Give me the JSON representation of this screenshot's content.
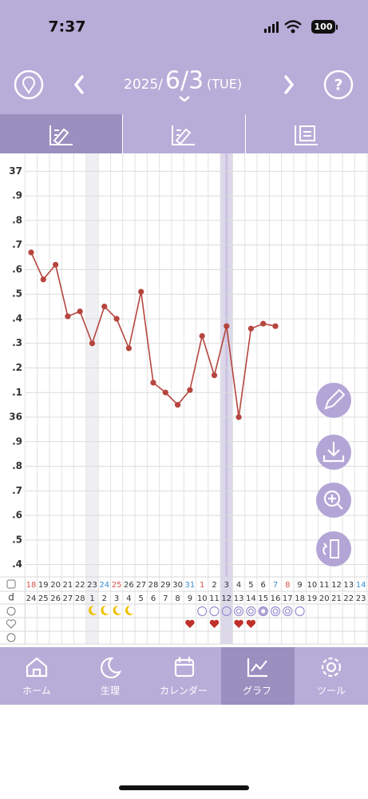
{
  "status_bar": {
    "time": "7:37",
    "battery": "100"
  },
  "header": {
    "year": "2025/",
    "date": "6/3",
    "weekday": "(TUE)"
  },
  "chart_data": {
    "type": "line",
    "categories": [
      "18",
      "19",
      "20",
      "21",
      "22",
      "23",
      "24",
      "25",
      "26",
      "27",
      "28",
      "29",
      "30",
      "31",
      "1",
      "2",
      "3",
      "4",
      "5",
      "6",
      "7",
      "8",
      "9",
      "10",
      "11",
      "12",
      "13",
      "14"
    ],
    "category_colors": [
      "#d9534f",
      "#333",
      "#333",
      "#333",
      "#333",
      "#333",
      "#3a8fd0",
      "#d9534f",
      "#333",
      "#333",
      "#333",
      "#333",
      "#333",
      "#3a8fd0",
      "#d9534f",
      "#333",
      "#333",
      "#333",
      "#333",
      "#333",
      "#3a8fd0",
      "#d9534f",
      "#333",
      "#333",
      "#333",
      "#333",
      "#333",
      "#3a8fd0"
    ],
    "cycle_label": "d",
    "cycle_days": [
      "24",
      "25",
      "26",
      "27",
      "28",
      "1",
      "2",
      "3",
      "4",
      "5",
      "6",
      "7",
      "8",
      "9",
      "10",
      "11",
      "12",
      "13",
      "14",
      "15",
      "16",
      "17",
      "18",
      "19",
      "20",
      "21",
      "22",
      "23"
    ],
    "values": [
      36.67,
      36.56,
      36.62,
      36.41,
      36.43,
      36.3,
      36.45,
      36.4,
      36.28,
      36.51,
      36.14,
      36.1,
      36.05,
      36.11,
      36.33,
      36.17,
      36.37,
      36.0,
      36.36,
      36.38,
      36.37,
      null,
      null,
      null,
      null,
      null,
      null,
      null
    ],
    "color": "#b5453e",
    "ylim": [
      35.35,
      37.05
    ],
    "yticks": [
      37,
      {
        "value": 36.9,
        "label": ".9"
      },
      {
        "value": 36.8,
        "label": ".8"
      },
      {
        "value": 36.7,
        "label": ".7"
      },
      {
        "value": 36.6,
        "label": ".6"
      },
      {
        "value": 36.5,
        "label": ".5"
      },
      {
        "value": 36.4,
        "label": ".4"
      },
      {
        "value": 36.3,
        "label": ".3"
      },
      {
        "value": 36.2,
        "label": ".2"
      },
      {
        "value": 36.1,
        "label": ".1"
      },
      36,
      {
        "value": 35.9,
        "label": ".9"
      },
      {
        "value": 35.8,
        "label": ".8"
      },
      {
        "value": 35.7,
        "label": ".7"
      },
      {
        "value": 35.6,
        "label": ".6"
      },
      {
        "value": 35.5,
        "label": ".5"
      },
      {
        "value": 35.4,
        "label": ".4"
      }
    ],
    "grid": true
  },
  "nav": [
    "ホーム",
    "生理",
    "カレンダー",
    "グラフ",
    "ツール"
  ]
}
